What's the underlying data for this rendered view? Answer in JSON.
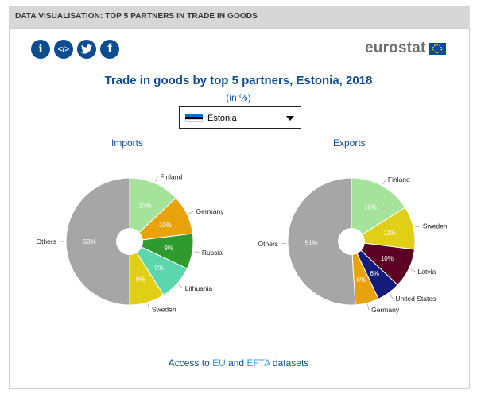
{
  "header": {
    "label": "DATA VISUALISATION: TOP 5 PARTNERS IN TRADE IN GOODS"
  },
  "toolbar": {
    "icons": [
      "info-icon",
      "embed-icon",
      "twitter-icon",
      "facebook-icon"
    ],
    "info_glyph": "i",
    "embed_glyph": "</>",
    "facebook_glyph": "f"
  },
  "logo": {
    "text": "eurostat"
  },
  "country_select": {
    "value": "Estonia"
  },
  "colors": {
    "brand": "#0e4c92",
    "link": "#3a8fd9",
    "others": "#a6a6a6",
    "Finland": "#a5e39a",
    "Germany": "#e8a20b",
    "Russia": "#2f9b2f",
    "Lithuania": "#5ed6ad",
    "Sweden": "#e0cf14",
    "Latvia": "#5b0022",
    "United States": "#141b7a"
  },
  "chart_data": [
    {
      "type": "pie",
      "title": "Trade in goods by top 5 partners, Estonia, 2018",
      "subtitle": "(in %)",
      "chart_title": "Imports",
      "slices": [
        {
          "label": "Finland",
          "value": 13
        },
        {
          "label": "Germany",
          "value": 10
        },
        {
          "label": "Russia",
          "value": 9
        },
        {
          "label": "Lithuania",
          "value": 9
        },
        {
          "label": "Sweden",
          "value": 9
        },
        {
          "label": "Others",
          "value": 50
        }
      ]
    },
    {
      "type": "pie",
      "title": "Trade in goods by top 5 partners, Estonia, 2018",
      "subtitle": "(in %)",
      "chart_title": "Exports",
      "slices": [
        {
          "label": "Finland",
          "value": 16
        },
        {
          "label": "Sweden",
          "value": 11
        },
        {
          "label": "Latvia",
          "value": 10
        },
        {
          "label": "United States",
          "value": 6
        },
        {
          "label": "Germany",
          "value": 6
        },
        {
          "label": "Others",
          "value": 51
        }
      ]
    }
  ],
  "footer": {
    "prefix": "Access to ",
    "eu": "EU",
    "and": " and ",
    "efta": "EFTA",
    "suffix": " datasets"
  }
}
